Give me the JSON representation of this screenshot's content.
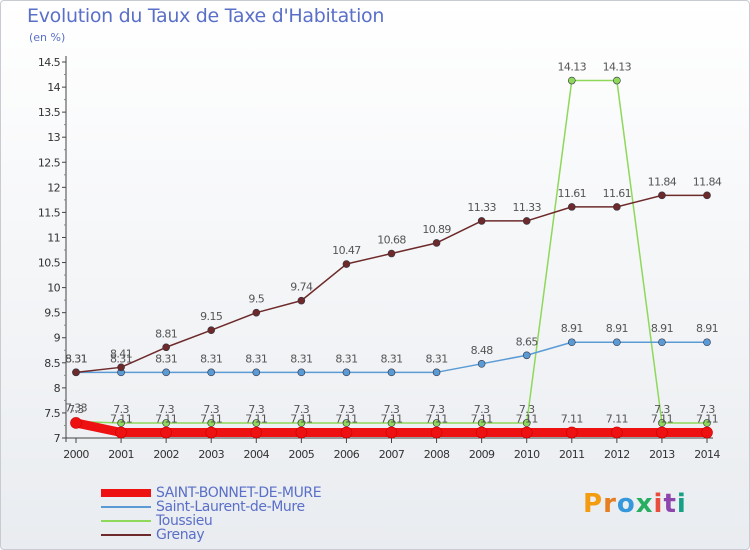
{
  "title": "Evolution du Taux de Taxe d'Habitation",
  "subtitle": "(en %)",
  "logo": {
    "text": "Proxiti",
    "colors": [
      "#f39c12",
      "#e67e22",
      "#3498db",
      "#27ae60",
      "#e74c3c",
      "#8e44ad",
      "#16a085"
    ]
  },
  "chart_data": {
    "type": "line",
    "title": "Evolution du Taux de Taxe d'Habitation",
    "ylabel": "(en %)",
    "xlabel": "",
    "x": [
      "2000",
      "2001",
      "2002",
      "2003",
      "2004",
      "2005",
      "2006",
      "2007",
      "2008",
      "2009",
      "2010",
      "2011",
      "2012",
      "2013",
      "2014"
    ],
    "ylim": [
      7,
      14.5
    ],
    "yticks": [
      "7",
      "7.5",
      "8",
      "8.5",
      "9",
      "9.5",
      "10",
      "10.5",
      "11",
      "11.5",
      "12",
      "12.5",
      "13",
      "13.5",
      "14",
      "14.5"
    ],
    "grid": false,
    "legend_position": "bottom-left",
    "series": [
      {
        "name": "SAINT-BONNET-DE-MURE",
        "color": "#ee1111",
        "values": [
          7.3,
          7.11,
          7.11,
          7.11,
          7.11,
          7.11,
          7.11,
          7.11,
          7.11,
          7.11,
          7.11,
          7.11,
          7.11,
          7.11,
          7.11
        ],
        "labels": [
          "7.3",
          "7.11",
          "7.11",
          "7.11",
          "7.11",
          "7.11",
          "7.11",
          "7.11",
          "7.11",
          "7.11",
          "7.11",
          "7.11",
          "7.11",
          "7.11",
          "7.11"
        ]
      },
      {
        "name": "Saint-Laurent-de-Mure",
        "color": "#5b9bd5",
        "values": [
          8.31,
          8.31,
          8.31,
          8.31,
          8.31,
          8.31,
          8.31,
          8.31,
          8.31,
          8.48,
          8.65,
          8.91,
          8.91,
          8.91,
          8.91
        ],
        "labels": [
          "8.31",
          "8.31",
          "8.31",
          "8.31",
          "8.31",
          "8.31",
          "8.31",
          "8.31",
          "8.31",
          "8.48",
          "8.65",
          "8.91",
          "8.91",
          "8.91",
          "8.91"
        ]
      },
      {
        "name": "Toussieu",
        "color": "#8ed85a",
        "values": [
          7.33,
          7.3,
          7.3,
          7.3,
          7.3,
          7.3,
          7.3,
          7.3,
          7.3,
          7.3,
          7.3,
          14.13,
          14.13,
          7.3,
          7.3
        ],
        "labels": [
          "7.33",
          "7.3",
          "7.3",
          "7.3",
          "7.3",
          "7.3",
          "7.3",
          "7.3",
          "7.3",
          "7.3",
          "7.3",
          "14.13",
          "14.13",
          "7.3",
          "7.3"
        ]
      },
      {
        "name": "Grenay",
        "color": "#6e2a2a",
        "values": [
          8.31,
          8.41,
          8.81,
          9.15,
          9.5,
          9.74,
          10.47,
          10.68,
          10.89,
          11.33,
          11.33,
          11.61,
          11.61,
          11.84,
          11.84
        ],
        "labels": [
          "8.31",
          "8.41",
          "8.81",
          "9.15",
          "9.5",
          "9.74",
          "10.47",
          "10.68",
          "10.89",
          "11.33",
          "11.33",
          "11.61",
          "11.61",
          "11.84",
          "11.84"
        ]
      }
    ]
  }
}
